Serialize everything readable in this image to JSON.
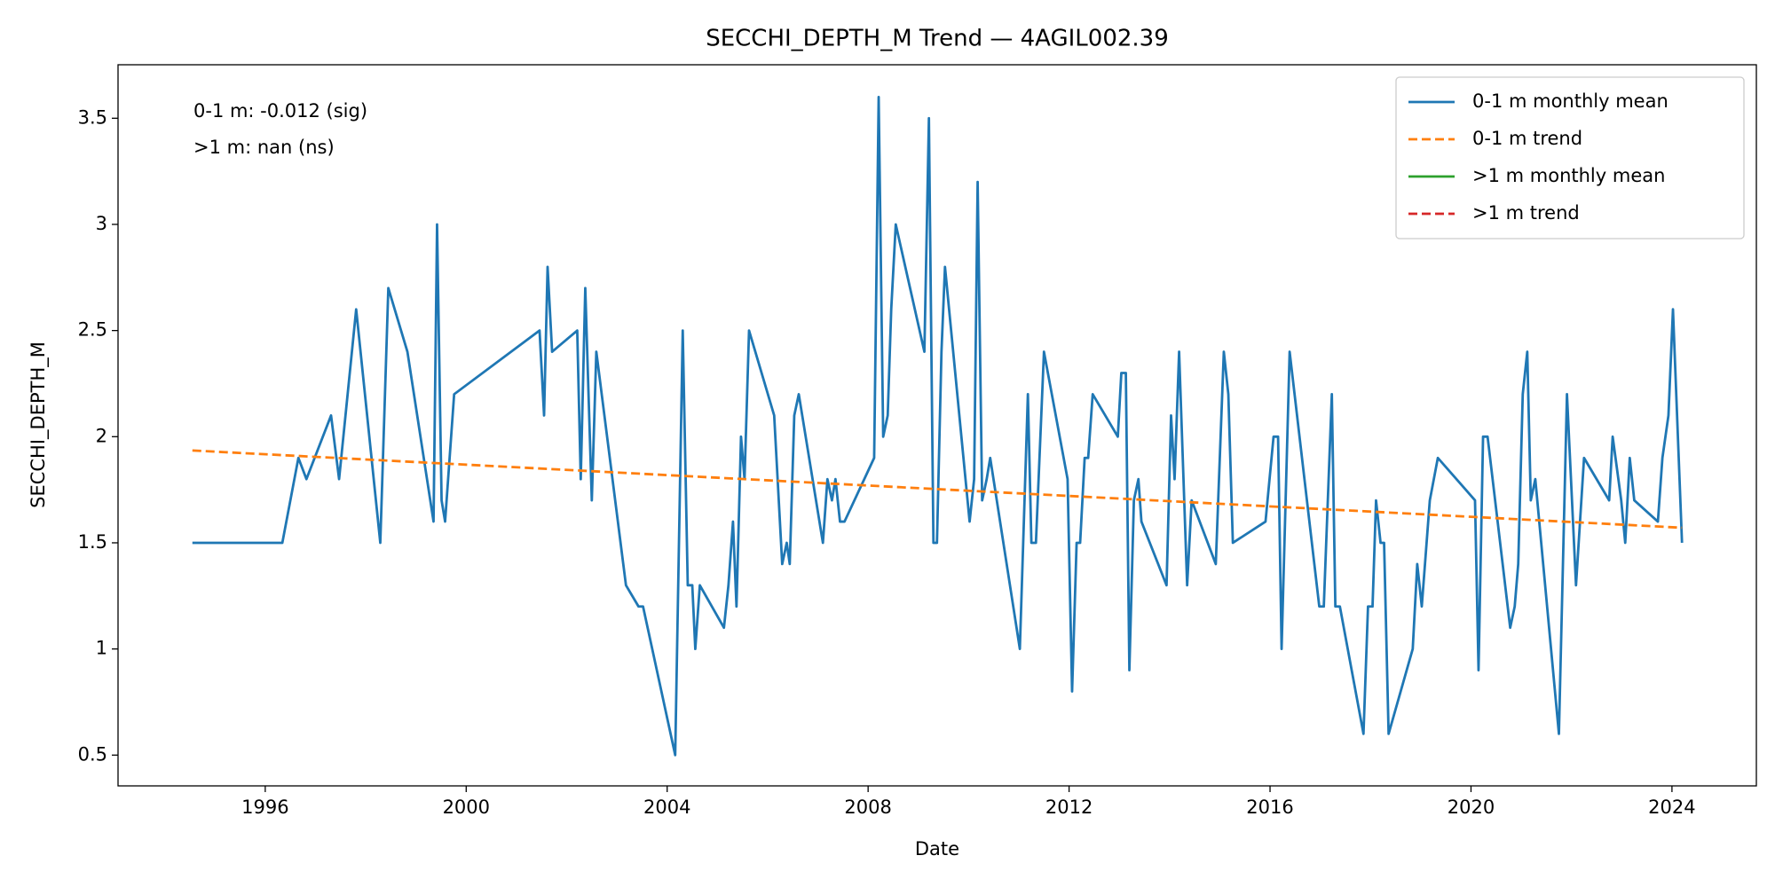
{
  "chart_data": {
    "type": "line",
    "title": "SECCHI_DEPTH_M Trend — 4AGIL002.39",
    "xlabel": "Date",
    "ylabel": "SECCHI_DEPTH_M",
    "annotations": [
      "0-1 m: -0.012 (sig)",
      ">1 m: nan (ns)"
    ],
    "legend": "upper right",
    "grid": false,
    "xlim": [
      1993.07,
      2025.68
    ],
    "xticks": [
      1996,
      2000,
      2004,
      2008,
      2012,
      2016,
      2020,
      2024
    ],
    "ylim": [
      0.355,
      3.752
    ],
    "yticks": [
      0.5,
      1.0,
      1.5,
      2.0,
      2.5,
      3.0,
      3.5
    ],
    "series": [
      {
        "name": "0-1 m monthly mean",
        "color": "#1f77b4",
        "dashed": false,
        "x": [
          1994.55,
          1996.34,
          1996.66,
          1996.82,
          1997.31,
          1997.47,
          1997.81,
          1998.29,
          1998.45,
          1998.83,
          1999.35,
          1999.42,
          1999.51,
          1999.58,
          1999.76,
          2001.46,
          2001.55,
          2001.62,
          2001.71,
          2002.21,
          2002.28,
          2002.37,
          2002.5,
          2002.59,
          2003.18,
          2003.43,
          2003.52,
          2004.16,
          2004.31,
          2004.41,
          2004.5,
          2004.56,
          2004.65,
          2005.13,
          2005.22,
          2005.31,
          2005.38,
          2005.47,
          2005.54,
          2005.63,
          2006.13,
          2006.29,
          2006.38,
          2006.44,
          2006.53,
          2006.62,
          2007.1,
          2007.19,
          2007.28,
          2007.35,
          2007.44,
          2007.53,
          2008.12,
          2008.21,
          2008.3,
          2008.39,
          2008.46,
          2008.55,
          2009.12,
          2009.21,
          2009.3,
          2009.37,
          2009.46,
          2009.53,
          2010.02,
          2010.11,
          2010.18,
          2010.27,
          2010.36,
          2010.43,
          2011.02,
          2011.18,
          2011.25,
          2011.34,
          2011.5,
          2011.97,
          2012.06,
          2012.15,
          2012.22,
          2012.31,
          2012.38,
          2012.47,
          2012.97,
          2013.04,
          2013.13,
          2013.2,
          2013.29,
          2013.38,
          2013.44,
          2013.94,
          2014.03,
          2014.1,
          2014.19,
          2014.35,
          2014.44,
          2014.92,
          2015.08,
          2015.17,
          2015.26,
          2015.91,
          2016.07,
          2016.16,
          2016.23,
          2016.39,
          2016.98,
          2017.07,
          2017.23,
          2017.3,
          2017.39,
          2017.86,
          2017.95,
          2018.04,
          2018.11,
          2018.2,
          2018.27,
          2018.36,
          2018.84,
          2018.93,
          2019.02,
          2019.18,
          2019.34,
          2020.08,
          2020.15,
          2020.24,
          2020.33,
          2020.78,
          2020.87,
          2020.94,
          2021.03,
          2021.12,
          2021.19,
          2021.28,
          2021.75,
          2021.91,
          2022.09,
          2022.25,
          2022.75,
          2022.82,
          2022.99,
          2023.07,
          2023.16,
          2023.25,
          2023.72,
          2023.81,
          2023.93,
          2024.02,
          2024.2
        ],
        "values": [
          1.5,
          1.5,
          1.9,
          1.8,
          2.1,
          1.8,
          2.6,
          1.5,
          2.7,
          2.4,
          1.6,
          3.0,
          1.7,
          1.6,
          2.2,
          2.5,
          2.1,
          2.8,
          2.4,
          2.5,
          1.8,
          2.7,
          1.7,
          2.4,
          1.3,
          1.2,
          1.2,
          0.5,
          2.5,
          1.3,
          1.3,
          1.0,
          1.3,
          1.1,
          1.3,
          1.6,
          1.2,
          2.0,
          1.8,
          2.5,
          2.1,
          1.4,
          1.5,
          1.4,
          2.1,
          2.2,
          1.5,
          1.8,
          1.7,
          1.8,
          1.6,
          1.6,
          1.9,
          3.6,
          2.0,
          2.1,
          2.6,
          3.0,
          2.4,
          3.5,
          1.5,
          1.5,
          2.4,
          2.8,
          1.6,
          1.8,
          3.2,
          1.7,
          1.8,
          1.9,
          1.0,
          2.2,
          1.5,
          1.5,
          2.4,
          1.8,
          0.8,
          1.5,
          1.5,
          1.9,
          1.9,
          2.2,
          2.0,
          2.3,
          2.3,
          0.9,
          1.7,
          1.8,
          1.6,
          1.3,
          2.1,
          1.8,
          2.4,
          1.3,
          1.7,
          1.4,
          2.4,
          2.2,
          1.5,
          1.6,
          2.0,
          2.0,
          1.0,
          2.4,
          1.2,
          1.2,
          2.2,
          1.2,
          1.2,
          0.6,
          1.2,
          1.2,
          1.7,
          1.5,
          1.5,
          0.6,
          1.0,
          1.4,
          1.2,
          1.7,
          1.9,
          1.7,
          0.9,
          2.0,
          2.0,
          1.1,
          1.2,
          1.4,
          2.2,
          2.4,
          1.7,
          1.8,
          0.6,
          2.2,
          1.3,
          1.9,
          1.7,
          2.0,
          1.7,
          1.5,
          1.9,
          1.7,
          1.6,
          1.9,
          2.1,
          2.6,
          1.5
        ]
      },
      {
        "name": "0-1 m trend",
        "color": "#ff7f0e",
        "dashed": true,
        "x": [
          1994.55,
          2024.2
        ],
        "values": [
          1.935,
          1.571
        ]
      },
      {
        "name": ">1 m monthly mean",
        "color": "#2ca02c",
        "dashed": false,
        "x": [],
        "values": []
      },
      {
        "name": ">1 m trend",
        "color": "#d62728",
        "dashed": true,
        "x": [],
        "values": []
      }
    ]
  }
}
